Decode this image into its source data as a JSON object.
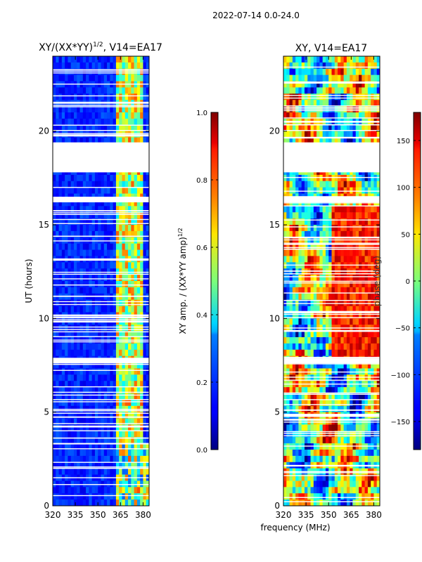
{
  "figure": {
    "suptitle": "2022-07-14 0.0-24.0",
    "xlabel_shared": "frequency (MHz)"
  },
  "chart_data": [
    {
      "type": "heatmap",
      "title": "XY/(XX*YY)^{1/2}, V14=EA17",
      "title_main": "XY/(XX*YY)",
      "title_exp": "1/2",
      "title_tail": ", V14=EA17",
      "ylabel": "UT (hours)",
      "x_ticks": [
        320,
        335,
        350,
        365,
        380
      ],
      "x_tick_labels": [
        "320",
        "335",
        "350",
        "365",
        "380"
      ],
      "xlim": [
        320,
        384
      ],
      "y_ticks": [
        0,
        5,
        10,
        15,
        20
      ],
      "y_tick_labels": [
        "0",
        "5",
        "10",
        "15",
        "20"
      ],
      "ylim": [
        0,
        24
      ],
      "data_gaps_hours": [
        [
          17.8,
          19.4
        ],
        [
          16.2,
          16.5
        ],
        [
          7.6,
          7.9
        ]
      ],
      "bright_columns_mhz": [
        364,
        368,
        372,
        376,
        379
      ],
      "colorbar": {
        "label_main": "XY amp. / (XX*YY amp)",
        "label_exp": "1/2",
        "ticks": [
          0.0,
          0.2,
          0.4,
          0.6,
          0.8,
          1.0
        ],
        "tick_labels": [
          "0.0",
          "0.2",
          "0.4",
          "0.6",
          "0.8",
          "1.0"
        ],
        "range": [
          0.0,
          1.0
        ],
        "colormap": "jet"
      }
    },
    {
      "type": "heatmap",
      "title": "XY, V14=EA17",
      "x_ticks": [
        320,
        335,
        350,
        365,
        380
      ],
      "x_tick_labels": [
        "320",
        "335",
        "350",
        "365",
        "380"
      ],
      "xlim": [
        320,
        384
      ],
      "y_ticks": [
        0,
        5,
        10,
        15,
        20
      ],
      "y_tick_labels": [
        "0",
        "5",
        "10",
        "15",
        "20"
      ],
      "ylim": [
        0,
        24
      ],
      "data_gaps_hours": [
        [
          17.8,
          19.4
        ],
        [
          16.2,
          16.5
        ],
        [
          7.6,
          7.9
        ]
      ],
      "colorbar": {
        "label": "phase (deg)",
        "ticks": [
          -150,
          -100,
          -50,
          0,
          50,
          100,
          150
        ],
        "tick_labels": [
          "−150",
          "−100",
          "−50",
          "0",
          "50",
          "100",
          "150"
        ],
        "range": [
          -180,
          180
        ],
        "colormap": "jet"
      }
    }
  ]
}
